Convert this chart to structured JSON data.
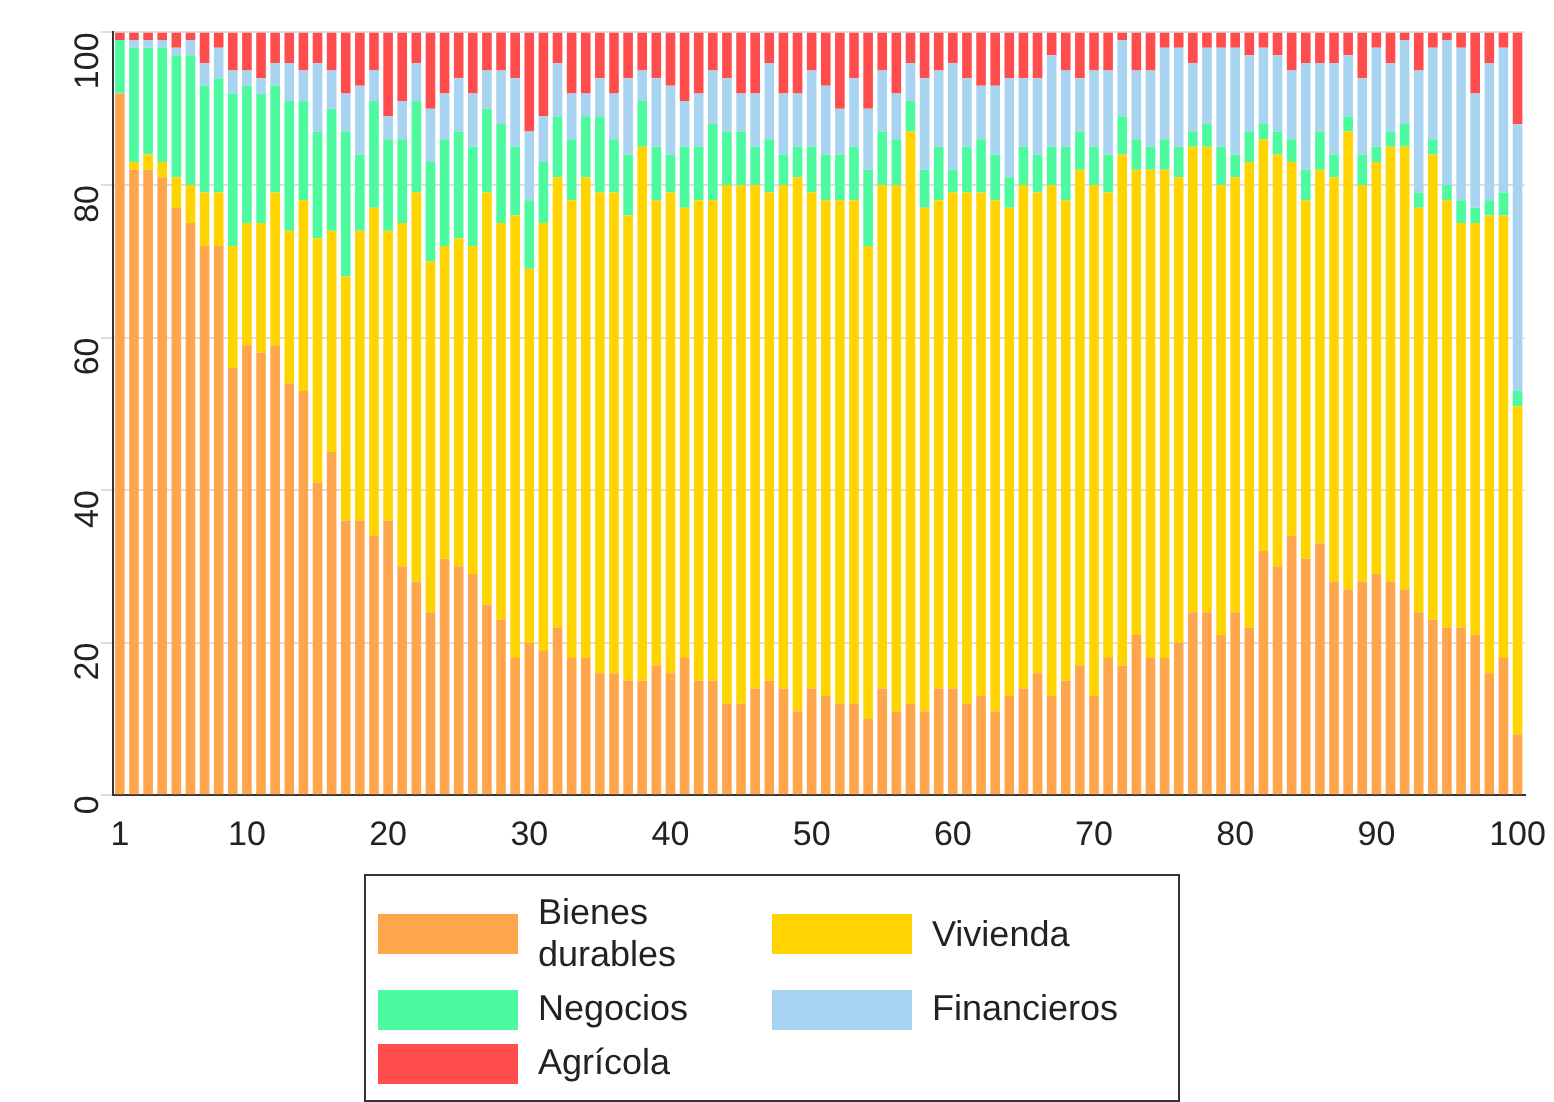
{
  "chart_data": {
    "type": "bar",
    "stacked": true,
    "legend": "bottom",
    "grid": "y",
    "categories": [
      "1",
      null,
      null,
      null,
      null,
      null,
      null,
      null,
      null,
      "10",
      null,
      null,
      null,
      null,
      null,
      null,
      null,
      null,
      null,
      "20",
      null,
      null,
      null,
      null,
      null,
      null,
      null,
      null,
      null,
      "30",
      null,
      null,
      null,
      null,
      null,
      null,
      null,
      null,
      null,
      "40",
      null,
      null,
      null,
      null,
      null,
      null,
      null,
      null,
      null,
      "50",
      null,
      null,
      null,
      null,
      null,
      null,
      null,
      null,
      null,
      "60",
      null,
      null,
      null,
      null,
      null,
      null,
      null,
      null,
      null,
      "70",
      null,
      null,
      null,
      null,
      null,
      null,
      null,
      null,
      null,
      "80",
      null,
      null,
      null,
      null,
      null,
      null,
      null,
      null,
      null,
      "90",
      null,
      null,
      null,
      null,
      null,
      null,
      null,
      null,
      null,
      "100"
    ],
    "ylim": [
      0,
      100
    ],
    "yticks": [
      0,
      20,
      40,
      60,
      80,
      100
    ],
    "series": [
      {
        "name": "Bienes durables",
        "color": "#ffa64d",
        "values": [
          92,
          82,
          82,
          81,
          77,
          75,
          72,
          72,
          56,
          59,
          58,
          59,
          54,
          53,
          41,
          45,
          36,
          36,
          34,
          36,
          30,
          28,
          24,
          31,
          30,
          29,
          25,
          23,
          18,
          20,
          19,
          22,
          18,
          18,
          16,
          16,
          15,
          15,
          17,
          16,
          18,
          15,
          15,
          12,
          12,
          14,
          15,
          14,
          11,
          14,
          13,
          12,
          12,
          10,
          14,
          11,
          12,
          11,
          14,
          14,
          12,
          13,
          11,
          13,
          14,
          16,
          13,
          15,
          17,
          13,
          18,
          17,
          21,
          18,
          18,
          20,
          24,
          24,
          21,
          24,
          22,
          32,
          30,
          34,
          31,
          33,
          28,
          27,
          28,
          29,
          28,
          27,
          24,
          23,
          22,
          22,
          21,
          16,
          18,
          8
        ]
      },
      {
        "name": "Vivienda",
        "color": "#ffd400",
        "values": [
          0,
          1,
          2,
          2,
          4,
          5,
          7,
          7,
          16,
          16,
          17,
          20,
          20,
          25,
          32,
          29,
          32,
          38,
          43,
          38,
          45,
          51,
          46,
          41,
          43,
          43,
          54,
          52,
          58,
          49,
          56,
          59,
          60,
          63,
          63,
          63,
          61,
          70,
          61,
          63,
          59,
          63,
          63,
          68,
          68,
          66,
          64,
          66,
          70,
          65,
          65,
          66,
          66,
          62,
          66,
          69,
          75,
          66,
          64,
          65,
          67,
          66,
          67,
          64,
          66,
          63,
          67,
          63,
          65,
          67,
          61,
          67,
          61,
          64,
          64,
          61,
          61,
          61,
          59,
          57,
          61,
          54,
          54,
          49,
          47,
          49,
          53,
          60,
          52,
          54,
          57,
          58,
          53,
          61,
          56,
          53,
          54,
          60,
          58,
          43
        ]
      },
      {
        "name": "Negocios",
        "color": "#4dfaa0",
        "values": [
          7,
          15,
          14,
          15,
          16,
          17,
          14,
          15,
          20,
          18,
          17,
          14,
          17,
          13,
          14,
          16,
          19,
          10,
          14,
          12,
          11,
          12,
          13,
          14,
          14,
          13,
          11,
          13,
          9,
          9,
          8,
          8,
          8,
          8,
          10,
          7,
          8,
          6,
          7,
          5,
          8,
          7,
          10,
          7,
          7,
          5,
          7,
          4,
          4,
          6,
          6,
          6,
          7,
          10,
          7,
          6,
          4,
          5,
          7,
          3,
          6,
          7,
          6,
          4,
          5,
          5,
          5,
          7,
          5,
          5,
          5,
          5,
          4,
          3,
          4,
          4,
          2,
          3,
          5,
          3,
          4,
          2,
          3,
          3,
          4,
          5,
          3,
          2,
          4,
          2,
          2,
          3,
          2,
          2,
          2,
          3,
          2,
          2,
          3,
          2
        ]
      },
      {
        "name": "Financieros",
        "color": "#a8d4f2",
        "values": [
          0,
          1,
          1,
          1,
          1,
          2,
          3,
          4,
          3,
          2,
          2,
          3,
          5,
          4,
          9,
          5,
          5,
          9,
          4,
          3,
          5,
          5,
          7,
          6,
          7,
          7,
          5,
          7,
          9,
          9,
          6,
          7,
          6,
          3,
          5,
          6,
          10,
          4,
          9,
          9,
          6,
          7,
          7,
          7,
          5,
          7,
          10,
          8,
          7,
          10,
          9,
          6,
          9,
          8,
          8,
          6,
          5,
          12,
          10,
          14,
          9,
          7,
          9,
          13,
          9,
          10,
          12,
          10,
          7,
          10,
          11,
          10,
          9,
          10,
          12,
          13,
          9,
          10,
          13,
          14,
          10,
          10,
          10,
          9,
          14,
          9,
          12,
          8,
          10,
          13,
          9,
          11,
          16,
          12,
          19,
          20,
          15,
          18,
          19,
          35
        ]
      },
      {
        "name": "Agrícola",
        "color": "#ff4d4d",
        "values": [
          1,
          1,
          1,
          1,
          2,
          1,
          4,
          2,
          5,
          5,
          6,
          4,
          4,
          5,
          4,
          5,
          8,
          7,
          5,
          11,
          9,
          4,
          10,
          8,
          6,
          8,
          5,
          5,
          6,
          13,
          11,
          4,
          8,
          8,
          6,
          8,
          6,
          5,
          6,
          7,
          9,
          8,
          5,
          6,
          8,
          8,
          4,
          8,
          8,
          5,
          7,
          10,
          6,
          10,
          5,
          8,
          4,
          6,
          5,
          4,
          6,
          7,
          7,
          6,
          6,
          6,
          3,
          5,
          6,
          5,
          5,
          1,
          5,
          5,
          2,
          2,
          4,
          2,
          2,
          2,
          3,
          2,
          3,
          5,
          4,
          4,
          4,
          3,
          6,
          2,
          4,
          1,
          5,
          2,
          1,
          2,
          8,
          4,
          2,
          12
        ]
      }
    ]
  }
}
